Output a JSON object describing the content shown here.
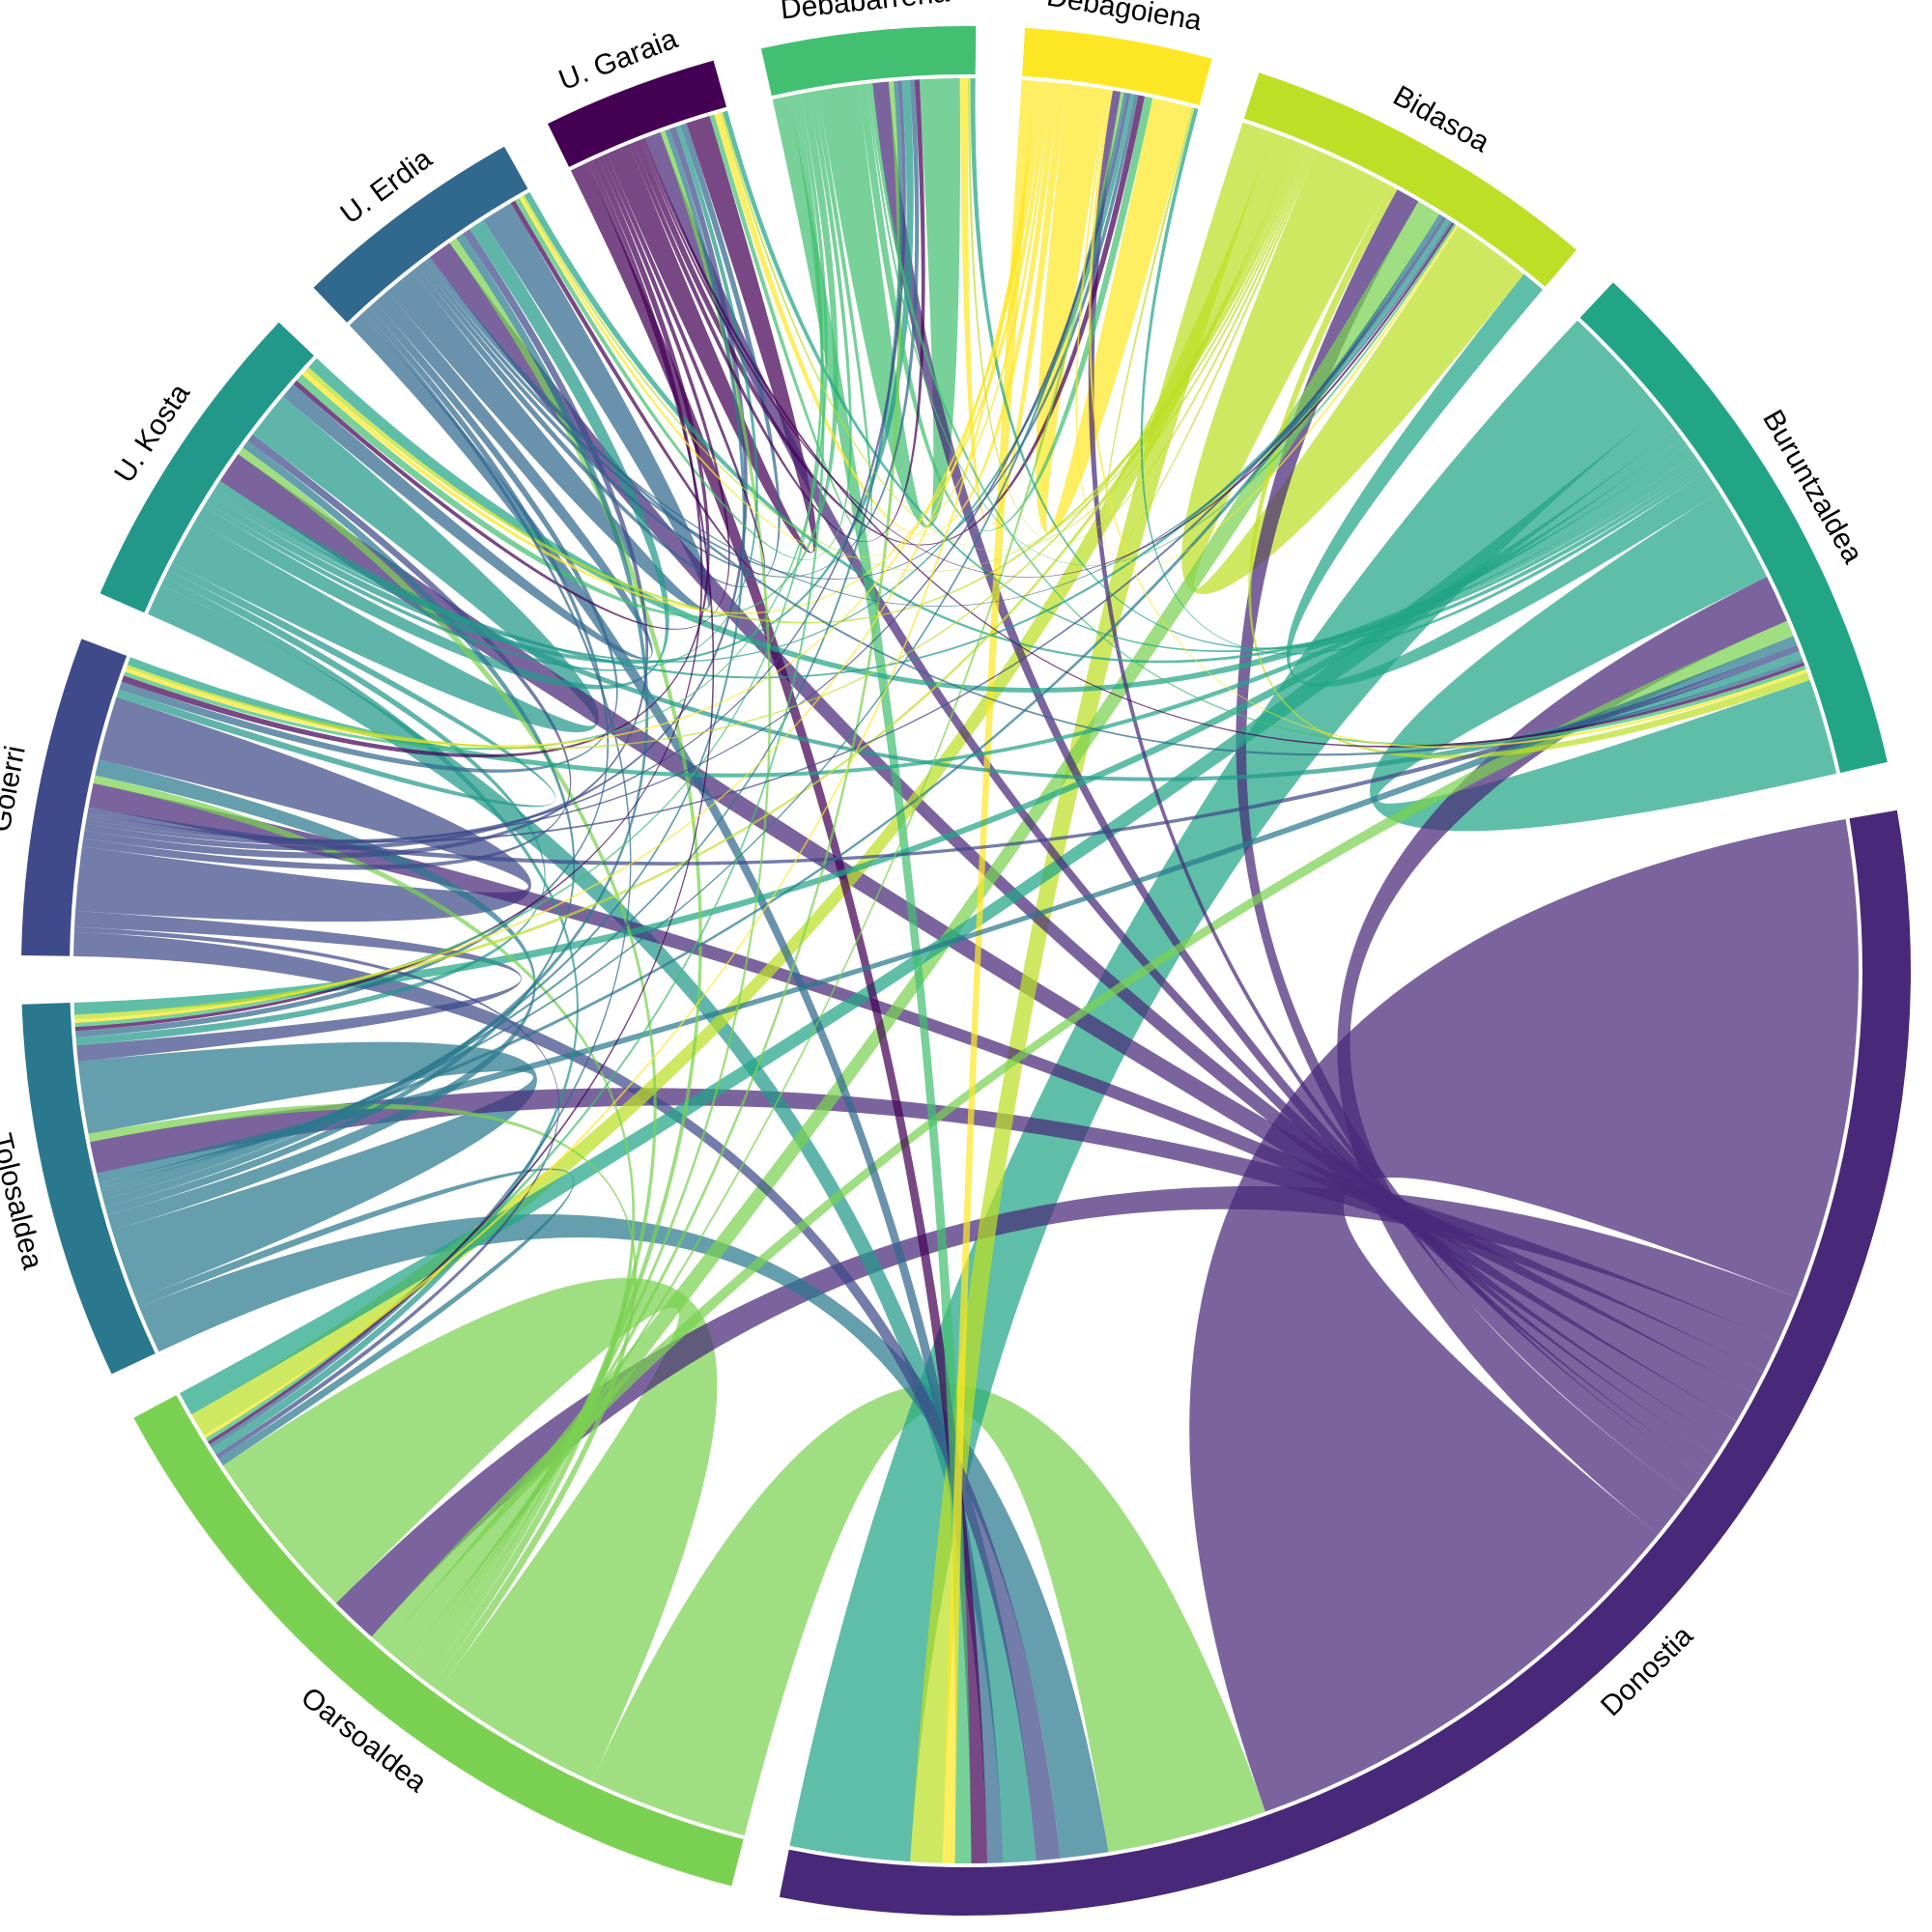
{
  "chart_data": {
    "type": "chord",
    "title": "",
    "regions": [
      {
        "name": "Donostia",
        "color": "#482878"
      },
      {
        "name": "Oarsoaldea",
        "color": "#7AD151"
      },
      {
        "name": "Tolosaldea",
        "color": "#2A788E"
      },
      {
        "name": "Goierri",
        "color": "#3E4A89"
      },
      {
        "name": "U. Kosta",
        "color": "#22988A"
      },
      {
        "name": "U. Erdia",
        "color": "#31688E"
      },
      {
        "name": "U. Garaia",
        "color": "#440154"
      },
      {
        "name": "Debabarrena",
        "color": "#43BF71"
      },
      {
        "name": "Debagoiena",
        "color": "#FDE725"
      },
      {
        "name": "Bidasoa",
        "color": "#BDDF26"
      },
      {
        "name": "Buruntzaldea",
        "color": "#21A585"
      }
    ],
    "matrix": [
      [
        60,
        6,
        4,
        3,
        4,
        3,
        2,
        2,
        1,
        3,
        6
      ],
      [
        20,
        22,
        1,
        1,
        1,
        1,
        0.6,
        0.6,
        0.4,
        3,
        2
      ],
      [
        6,
        1,
        9,
        2,
        1,
        1,
        0.6,
        0.5,
        0.4,
        0.6,
        1.2
      ],
      [
        3,
        0.6,
        2,
        8,
        1,
        1,
        0.8,
        0.5,
        0.4,
        0.4,
        0.8
      ],
      [
        4,
        1,
        1,
        1,
        6,
        2,
        0.6,
        1,
        0.5,
        0.6,
        1
      ],
      [
        2,
        0.5,
        0.8,
        1,
        2,
        4,
        0.8,
        0.6,
        0.5,
        0.3,
        0.5
      ],
      [
        2,
        0.4,
        0.5,
        0.8,
        0.6,
        0.6,
        3,
        0.6,
        0.8,
        0.3,
        0.4
      ],
      [
        2,
        0.5,
        0.5,
        0.5,
        1,
        0.6,
        0.6,
        5,
        1,
        0.3,
        0.5
      ],
      [
        1.5,
        0.4,
        0.4,
        0.5,
        0.6,
        0.4,
        0.8,
        1,
        5,
        0.3,
        0.4
      ],
      [
        4,
        3,
        0.6,
        0.4,
        0.6,
        0.3,
        0.3,
        0.3,
        0.3,
        10,
        1
      ],
      [
        15,
        3,
        1.5,
        1,
        1.5,
        0.8,
        0.6,
        0.6,
        0.5,
        3,
        12
      ]
    ]
  }
}
